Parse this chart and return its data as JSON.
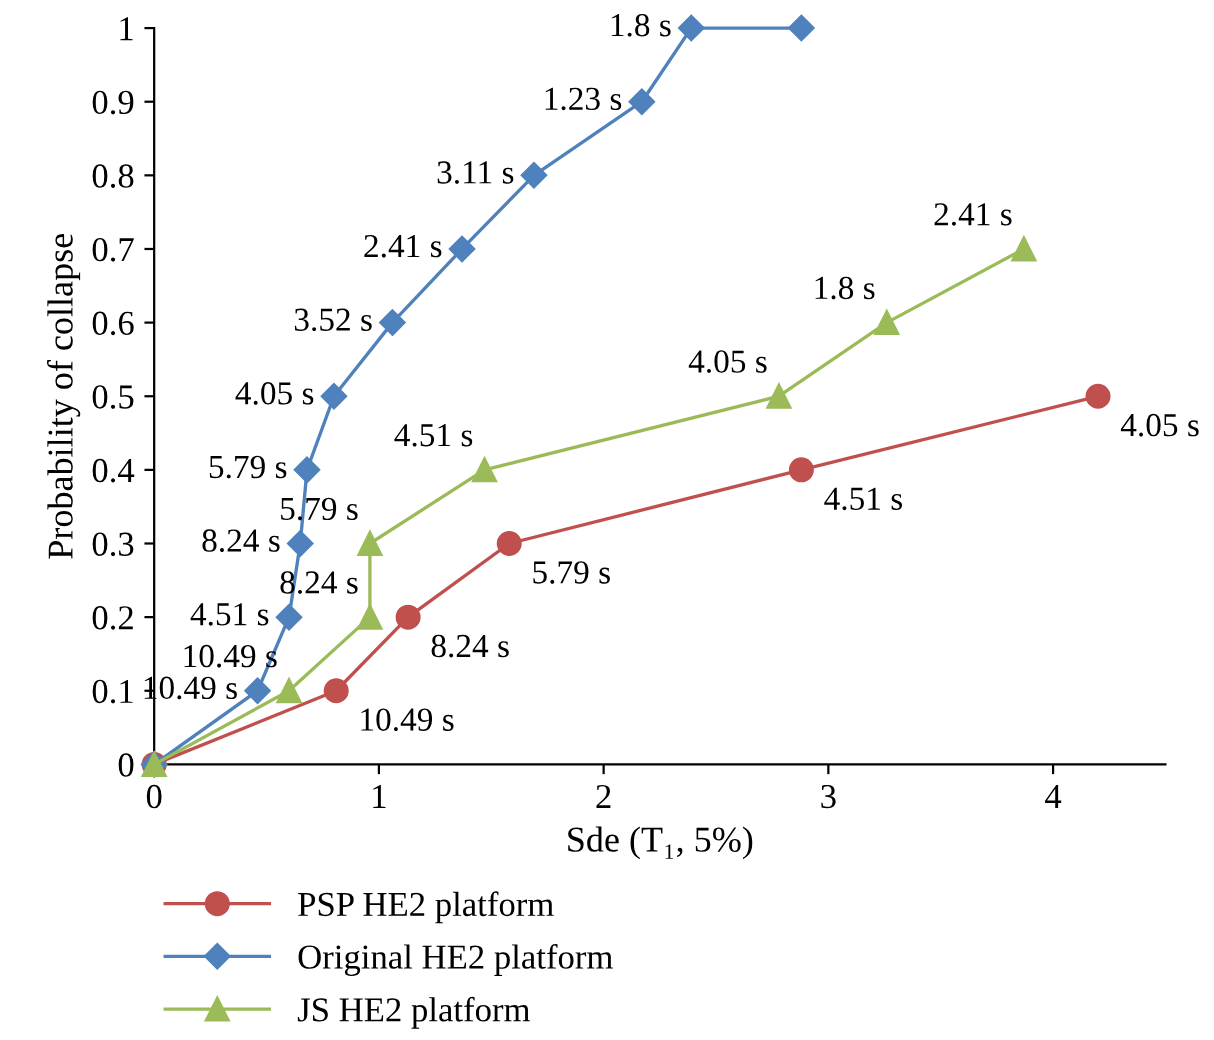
{
  "chart_data": {
    "type": "line",
    "xlabel": "Sde (T₁, 5%)",
    "ylabel": "Probability of collapse",
    "xlim": [
      0,
      4.5
    ],
    "xticks": [
      0,
      1,
      2,
      3,
      4
    ],
    "ylim": [
      0,
      1
    ],
    "yticks": [
      0,
      0.1,
      0.2,
      0.3,
      0.4,
      0.5,
      0.6,
      0.7,
      0.8,
      0.9,
      1
    ],
    "grid": false,
    "legend": "bottom",
    "line_style": "solid",
    "series": [
      {
        "name": "PSP HE2 platform",
        "color": "#c0504d",
        "marker": "circle",
        "x": [
          0,
          0.81,
          1.13,
          1.58,
          2.88,
          4.2
        ],
        "values": [
          0,
          0.1,
          0.2,
          0.3,
          0.4,
          0.5
        ]
      },
      {
        "name": "Original HE2 platform",
        "color": "#4f81bd",
        "marker": "diamond",
        "x": [
          0,
          0.46,
          0.6,
          0.65,
          0.68,
          0.8,
          1.06,
          1.37,
          1.69,
          2.17,
          2.39,
          2.88
        ],
        "values": [
          0,
          0.1,
          0.2,
          0.3,
          0.4,
          0.5,
          0.6,
          0.7,
          0.8,
          0.9,
          1,
          1
        ]
      },
      {
        "name": "JS HE2 platform",
        "color": "#9bbb59",
        "marker": "triangle",
        "x": [
          0,
          0.6,
          0.96,
          0.96,
          1.47,
          2.78,
          3.26,
          3.87
        ],
        "values": [
          0,
          0.1,
          0.2,
          0.3,
          0.4,
          0.5,
          0.6,
          0.7
        ]
      }
    ],
    "annotations": [
      {
        "text": "10.49 s",
        "x": 0.81,
        "y": 0.1
      },
      {
        "text": "8.24 s",
        "x": 1.13,
        "y": 0.2
      },
      {
        "text": "5.79 s",
        "x": 1.58,
        "y": 0.3
      },
      {
        "text": "4.51 s",
        "x": 2.88,
        "y": 0.4
      },
      {
        "text": "4.05 s",
        "x": 4.2,
        "y": 0.5
      },
      {
        "text": "10.49 s",
        "x": 0.46,
        "y": 0.1
      },
      {
        "text": "4.51 s",
        "x": 0.6,
        "y": 0.2
      },
      {
        "text": "8.24 s",
        "x": 0.65,
        "y": 0.3
      },
      {
        "text": "5.79 s",
        "x": 0.68,
        "y": 0.4
      },
      {
        "text": "4.05 s",
        "x": 0.8,
        "y": 0.5
      },
      {
        "text": "3.52 s",
        "x": 1.06,
        "y": 0.6
      },
      {
        "text": "2.41 s",
        "x": 1.37,
        "y": 0.7
      },
      {
        "text": "3.11 s",
        "x": 1.69,
        "y": 0.8
      },
      {
        "text": "1.23 s",
        "x": 2.17,
        "y": 0.9
      },
      {
        "text": "1.8 s",
        "x": 2.39,
        "y": 1
      },
      {
        "text": "10.49 s",
        "x": 0.6,
        "y": 0.1
      },
      {
        "text": "8.24 s",
        "x": 0.96,
        "y": 0.2
      },
      {
        "text": "5.79 s",
        "x": 0.96,
        "y": 0.3
      },
      {
        "text": "4.51 s",
        "x": 1.47,
        "y": 0.4
      },
      {
        "text": "4.05 s",
        "x": 2.78,
        "y": 0.5
      },
      {
        "text": "1.8 s",
        "x": 3.26,
        "y": 0.6
      },
      {
        "text": "2.41 s",
        "x": 3.87,
        "y": 0.7
      }
    ]
  }
}
